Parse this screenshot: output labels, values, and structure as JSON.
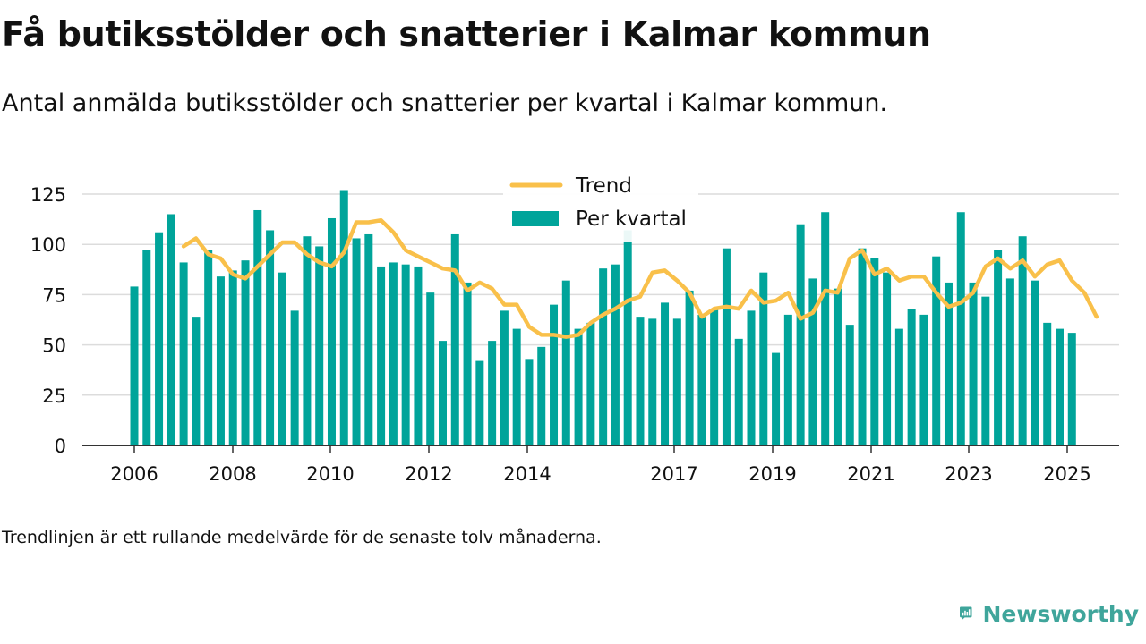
{
  "title": "Få butiksstölder och snatterier i Kalmar kommun",
  "subtitle": "Antal anmälda butiksstölder och snatterier per kvartal i Kalmar kommun.",
  "note": "Trendlinjen är ett rullande medelvärde för de senaste tolv månaderna.",
  "logo_text": "Newsworthy",
  "logo_icon": "newsworthy-logo-icon",
  "colors": {
    "bar": "#00a49a",
    "trend": "#f9c04a",
    "grid": "#dcdcdc",
    "axis": "#333333",
    "text": "#111111",
    "logo": "#3fa59b"
  },
  "chart_data": {
    "type": "bar",
    "title": "",
    "xlabel": "",
    "ylabel": "",
    "ylim": [
      0,
      130
    ],
    "yticks": [
      0,
      25,
      50,
      75,
      100,
      125
    ],
    "x_tick_labels": [
      "2006",
      "2008",
      "2010",
      "2012",
      "2014",
      "2017",
      "2019",
      "2021",
      "2023",
      "2025"
    ],
    "grid": true,
    "legend_position": "top-center",
    "series": [
      {
        "name": "Per kvartal",
        "type": "bar",
        "values": [
          79,
          97,
          106,
          115,
          91,
          64,
          97,
          84,
          87,
          92,
          117,
          107,
          86,
          67,
          104,
          99,
          113,
          127,
          103,
          105,
          89,
          91,
          90,
          89,
          76,
          52,
          105,
          81,
          42,
          52,
          67,
          58,
          43,
          49,
          70,
          82,
          58,
          61,
          88,
          90,
          107,
          64,
          63,
          71,
          63,
          77,
          65,
          68,
          98,
          53,
          67,
          86,
          46,
          65,
          110,
          83,
          116,
          78,
          60,
          98,
          93,
          86,
          58,
          68,
          65,
          94,
          81,
          116,
          81,
          74,
          97,
          83,
          104,
          82,
          61,
          58,
          56
        ]
      },
      {
        "name": "Trend",
        "type": "line",
        "start_index": 4,
        "values": [
          99,
          103,
          95,
          93,
          85,
          83,
          89,
          95,
          101,
          101,
          95,
          91,
          89,
          96,
          111,
          111,
          112,
          106,
          97,
          94,
          91,
          88,
          87,
          77,
          81,
          78,
          70,
          70,
          59,
          55,
          55,
          54,
          55,
          61,
          65,
          68,
          72,
          74,
          86,
          87,
          82,
          76,
          64,
          68,
          69,
          68,
          77,
          71,
          72,
          76,
          63,
          66,
          77,
          76,
          93,
          97,
          85,
          88,
          82,
          84,
          84,
          76,
          69,
          71,
          76,
          89,
          93,
          88,
          92,
          84,
          90,
          92,
          82,
          76,
          64
        ]
      }
    ]
  }
}
